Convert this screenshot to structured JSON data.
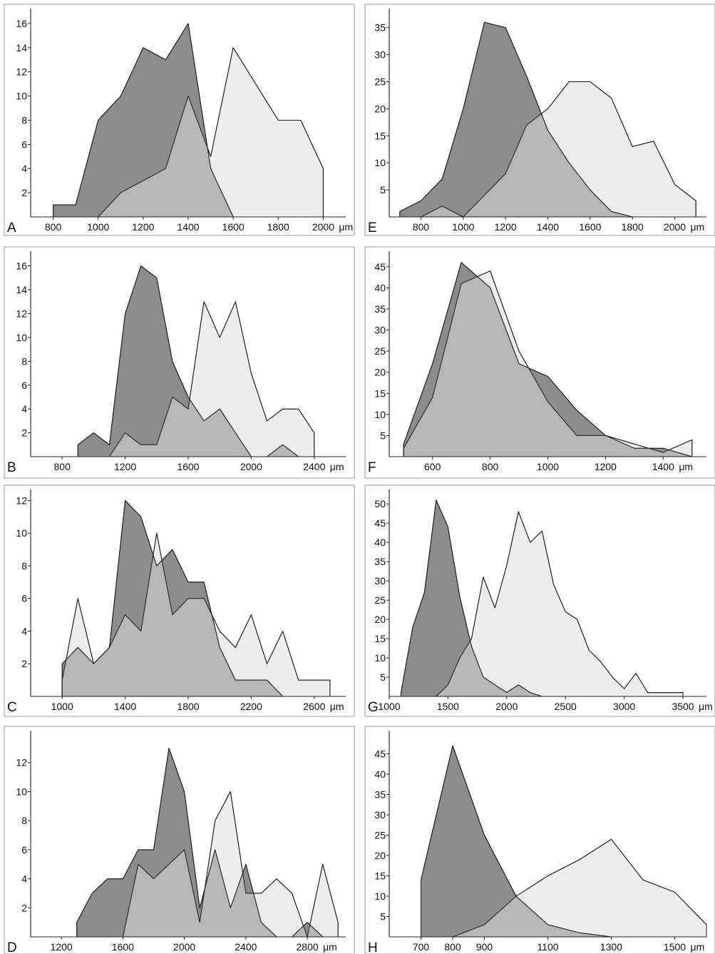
{
  "colors": {
    "dark_series": "#8c8c8c",
    "light_series": "#ededed",
    "overlap": "#b7b7b7",
    "outline": "#1a1a1a",
    "frame": "#9a9a9a"
  },
  "chart_data": [
    {
      "type": "area",
      "panel_label": "A",
      "unit": "μm",
      "xlim": [
        700,
        2100
      ],
      "ylim": [
        0,
        17
      ],
      "x_ticks": [
        800,
        1000,
        1200,
        1400,
        1600,
        1800,
        2000
      ],
      "y_ticks": [
        2,
        4,
        6,
        8,
        10,
        12,
        14,
        16
      ],
      "series": [
        {
          "x": [
            800,
            900,
            1000,
            1100,
            1200,
            1300,
            1400,
            1500,
            1600
          ],
          "y": [
            1,
            1,
            8,
            10,
            14,
            13,
            16,
            4,
            0
          ]
        },
        {
          "x": [
            1000,
            1100,
            1200,
            1300,
            1400,
            1500,
            1600,
            1700,
            1800,
            1900,
            2000,
            2000
          ],
          "y": [
            0,
            2,
            3,
            4,
            10,
            5,
            14,
            11,
            8,
            8,
            4,
            0
          ]
        }
      ]
    },
    {
      "type": "area",
      "panel_label": "B",
      "unit": "μm",
      "xlim": [
        600,
        2600
      ],
      "ylim": [
        0,
        17
      ],
      "x_ticks": [
        800,
        1200,
        1600,
        2000,
        2400
      ],
      "y_ticks": [
        2,
        4,
        6,
        8,
        10,
        12,
        14,
        16
      ],
      "series": [
        {
          "x": [
            900,
            900,
            1000,
            1100,
            1200,
            1300,
            1400,
            1500,
            1600,
            1700,
            1800,
            1900,
            2000,
            2100,
            2200,
            2300
          ],
          "y": [
            0,
            1,
            2,
            1,
            12,
            16,
            15,
            8,
            5,
            3,
            4,
            2,
            0,
            0,
            1,
            0
          ]
        },
        {
          "x": [
            1100,
            1200,
            1300,
            1400,
            1500,
            1600,
            1700,
            1800,
            1900,
            2000,
            2100,
            2200,
            2300,
            2400,
            2400
          ],
          "y": [
            0,
            2,
            1,
            1,
            5,
            4,
            13,
            10,
            13,
            7,
            3,
            4,
            4,
            2,
            0
          ]
        }
      ]
    },
    {
      "type": "area",
      "panel_label": "C",
      "unit": "μm",
      "xlim": [
        800,
        2800
      ],
      "ylim": [
        0,
        12.5
      ],
      "x_ticks": [
        1000,
        1400,
        1800,
        2200,
        2600
      ],
      "y_ticks": [
        2,
        4,
        6,
        8,
        10,
        12
      ],
      "series": [
        {
          "x": [
            1000,
            1000,
            1100,
            1200,
            1300,
            1400,
            1500,
            1600,
            1700,
            1800,
            1900,
            2000,
            2100,
            2200,
            2300,
            2400
          ],
          "y": [
            0,
            2,
            3,
            2,
            3,
            12,
            11,
            8,
            9,
            7,
            7,
            3,
            1,
            1,
            1,
            0
          ]
        },
        {
          "x": [
            1000,
            1000,
            1100,
            1200,
            1300,
            1400,
            1500,
            1600,
            1700,
            1800,
            1900,
            2000,
            2100,
            2200,
            2300,
            2400,
            2500,
            2600,
            2700,
            2700
          ],
          "y": [
            0,
            1,
            6,
            2,
            3,
            5,
            4,
            10,
            5,
            6,
            6,
            4,
            3,
            5,
            2,
            4,
            1,
            1,
            1,
            0
          ]
        }
      ]
    },
    {
      "type": "area",
      "panel_label": "D",
      "unit": "μm",
      "xlim": [
        1000,
        3050
      ],
      "ylim": [
        0,
        14
      ],
      "x_ticks": [
        1200,
        1600,
        2000,
        2400,
        2800
      ],
      "y_ticks": [
        2,
        4,
        6,
        8,
        10,
        12
      ],
      "series": [
        {
          "x": [
            1300,
            1300,
            1400,
            1500,
            1600,
            1700,
            1800,
            1900,
            2000,
            2100,
            2200,
            2300,
            2400,
            2500,
            2600,
            2700,
            2800,
            2900
          ],
          "y": [
            0,
            1,
            3,
            4,
            4,
            6,
            6,
            13,
            10,
            2,
            6,
            2,
            5,
            1,
            0,
            0,
            1,
            0
          ]
        },
        {
          "x": [
            1600,
            1700,
            1800,
            1900,
            2000,
            2100,
            2200,
            2300,
            2400,
            2500,
            2600,
            2700,
            2800,
            2900,
            3000,
            3000
          ],
          "y": [
            0,
            5,
            4,
            5,
            6,
            1,
            8,
            10,
            3,
            3,
            4,
            3,
            0,
            5,
            1,
            0
          ]
        }
      ]
    },
    {
      "type": "area",
      "panel_label": "E",
      "unit": "μm",
      "xlim": [
        650,
        2150
      ],
      "ylim": [
        0,
        38
      ],
      "x_ticks": [
        800,
        1000,
        1200,
        1400,
        1600,
        1800,
        2000
      ],
      "y_ticks": [
        5,
        10,
        15,
        20,
        25,
        30,
        35
      ],
      "series": [
        {
          "x": [
            700,
            700,
            800,
            900,
            1000,
            1100,
            1200,
            1300,
            1400,
            1500,
            1600,
            1700,
            1800
          ],
          "y": [
            0,
            1,
            3,
            7,
            20,
            36,
            35,
            26,
            16,
            10,
            5,
            1,
            0
          ]
        },
        {
          "x": [
            800,
            900,
            1000,
            1100,
            1200,
            1300,
            1400,
            1500,
            1600,
            1700,
            1800,
            1900,
            2000,
            2100,
            2100
          ],
          "y": [
            0,
            2,
            0,
            4,
            8,
            17,
            20,
            25,
            25,
            22,
            13,
            14,
            6,
            3,
            0
          ]
        }
      ]
    },
    {
      "type": "area",
      "panel_label": "F",
      "unit": "μm",
      "xlim": [
        450,
        1550
      ],
      "ylim": [
        0,
        48
      ],
      "x_ticks": [
        600,
        800,
        1000,
        1200,
        1400
      ],
      "y_ticks": [
        5,
        10,
        15,
        20,
        25,
        30,
        35,
        40,
        45
      ],
      "series": [
        {
          "x": [
            500,
            500,
            600,
            700,
            800,
            900,
            1000,
            1100,
            1200,
            1300,
            1400,
            1500
          ],
          "y": [
            0,
            3,
            22,
            46,
            40,
            22,
            19,
            11,
            5,
            2,
            2,
            0
          ]
        },
        {
          "x": [
            500,
            500,
            600,
            700,
            800,
            900,
            1000,
            1100,
            1200,
            1300,
            1400,
            1500,
            1500
          ],
          "y": [
            0,
            2,
            14,
            41,
            44,
            25,
            13,
            5,
            5,
            3,
            1,
            4,
            0
          ]
        }
      ]
    },
    {
      "type": "area",
      "panel_label": "G",
      "unit": "μm",
      "xlim": [
        1000,
        3700
      ],
      "ylim": [
        0,
        53
      ],
      "x_ticks": [
        1000,
        1500,
        2000,
        2500,
        3000,
        3500
      ],
      "y_ticks": [
        5,
        10,
        15,
        20,
        25,
        30,
        35,
        40,
        45,
        50
      ],
      "series": [
        {
          "x": [
            1100,
            1100,
            1200,
            1300,
            1400,
            1500,
            1600,
            1700,
            1800,
            1900,
            2000,
            2100,
            2200,
            2300
          ],
          "y": [
            0,
            1,
            18,
            27,
            51,
            44,
            26,
            13,
            5,
            3,
            1,
            3,
            1,
            0
          ]
        },
        {
          "x": [
            1400,
            1500,
            1600,
            1700,
            1800,
            1900,
            2000,
            2100,
            2200,
            2300,
            2400,
            2500,
            2600,
            2700,
            2800,
            2900,
            3000,
            3100,
            3200,
            3300,
            3400,
            3500,
            3500
          ],
          "y": [
            0,
            3,
            10,
            15,
            31,
            23,
            34,
            48,
            40,
            43,
            29,
            22,
            20,
            12,
            9,
            5,
            2,
            6,
            1,
            1,
            1,
            1,
            0
          ]
        }
      ]
    },
    {
      "type": "area",
      "panel_label": "H",
      "unit": "μm",
      "xlim": [
        600,
        1600
      ],
      "ylim": [
        0,
        50
      ],
      "x_ticks": [
        700,
        800,
        900,
        1100,
        1300,
        1500
      ],
      "y_ticks": [
        5,
        10,
        15,
        20,
        25,
        30,
        35,
        40,
        45
      ],
      "series": [
        {
          "x": [
            700,
            700,
            800,
            900,
            1000,
            1100,
            1200,
            1300
          ],
          "y": [
            0,
            14,
            47,
            25,
            10,
            3,
            1,
            0
          ]
        },
        {
          "x": [
            800,
            900,
            1000,
            1100,
            1200,
            1300,
            1400,
            1500,
            1600,
            1600
          ],
          "y": [
            0,
            3,
            10,
            15,
            19,
            24,
            14,
            11,
            3,
            0
          ]
        }
      ]
    }
  ]
}
